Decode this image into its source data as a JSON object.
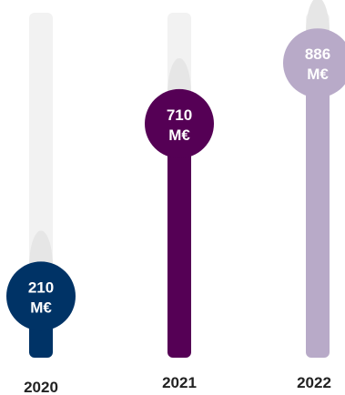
{
  "chart_data": {
    "type": "bar",
    "orientation": "vertical-thermometer",
    "categories": [
      "2020",
      "2021",
      "2022"
    ],
    "series": [
      {
        "values": [
          210,
          710,
          886
        ],
        "value_labels": [
          [
            "210",
            "M€"
          ],
          [
            "710",
            "M€"
          ],
          [
            "886",
            "M€"
          ]
        ],
        "colors": [
          "#003366",
          "#550055",
          "#b8aac8"
        ]
      }
    ],
    "ylim": [
      0,
      1000
    ],
    "grid": false,
    "legend": "none",
    "track_color": "#f2f2f2",
    "track_shadow_color": "#e6e6e6"
  }
}
